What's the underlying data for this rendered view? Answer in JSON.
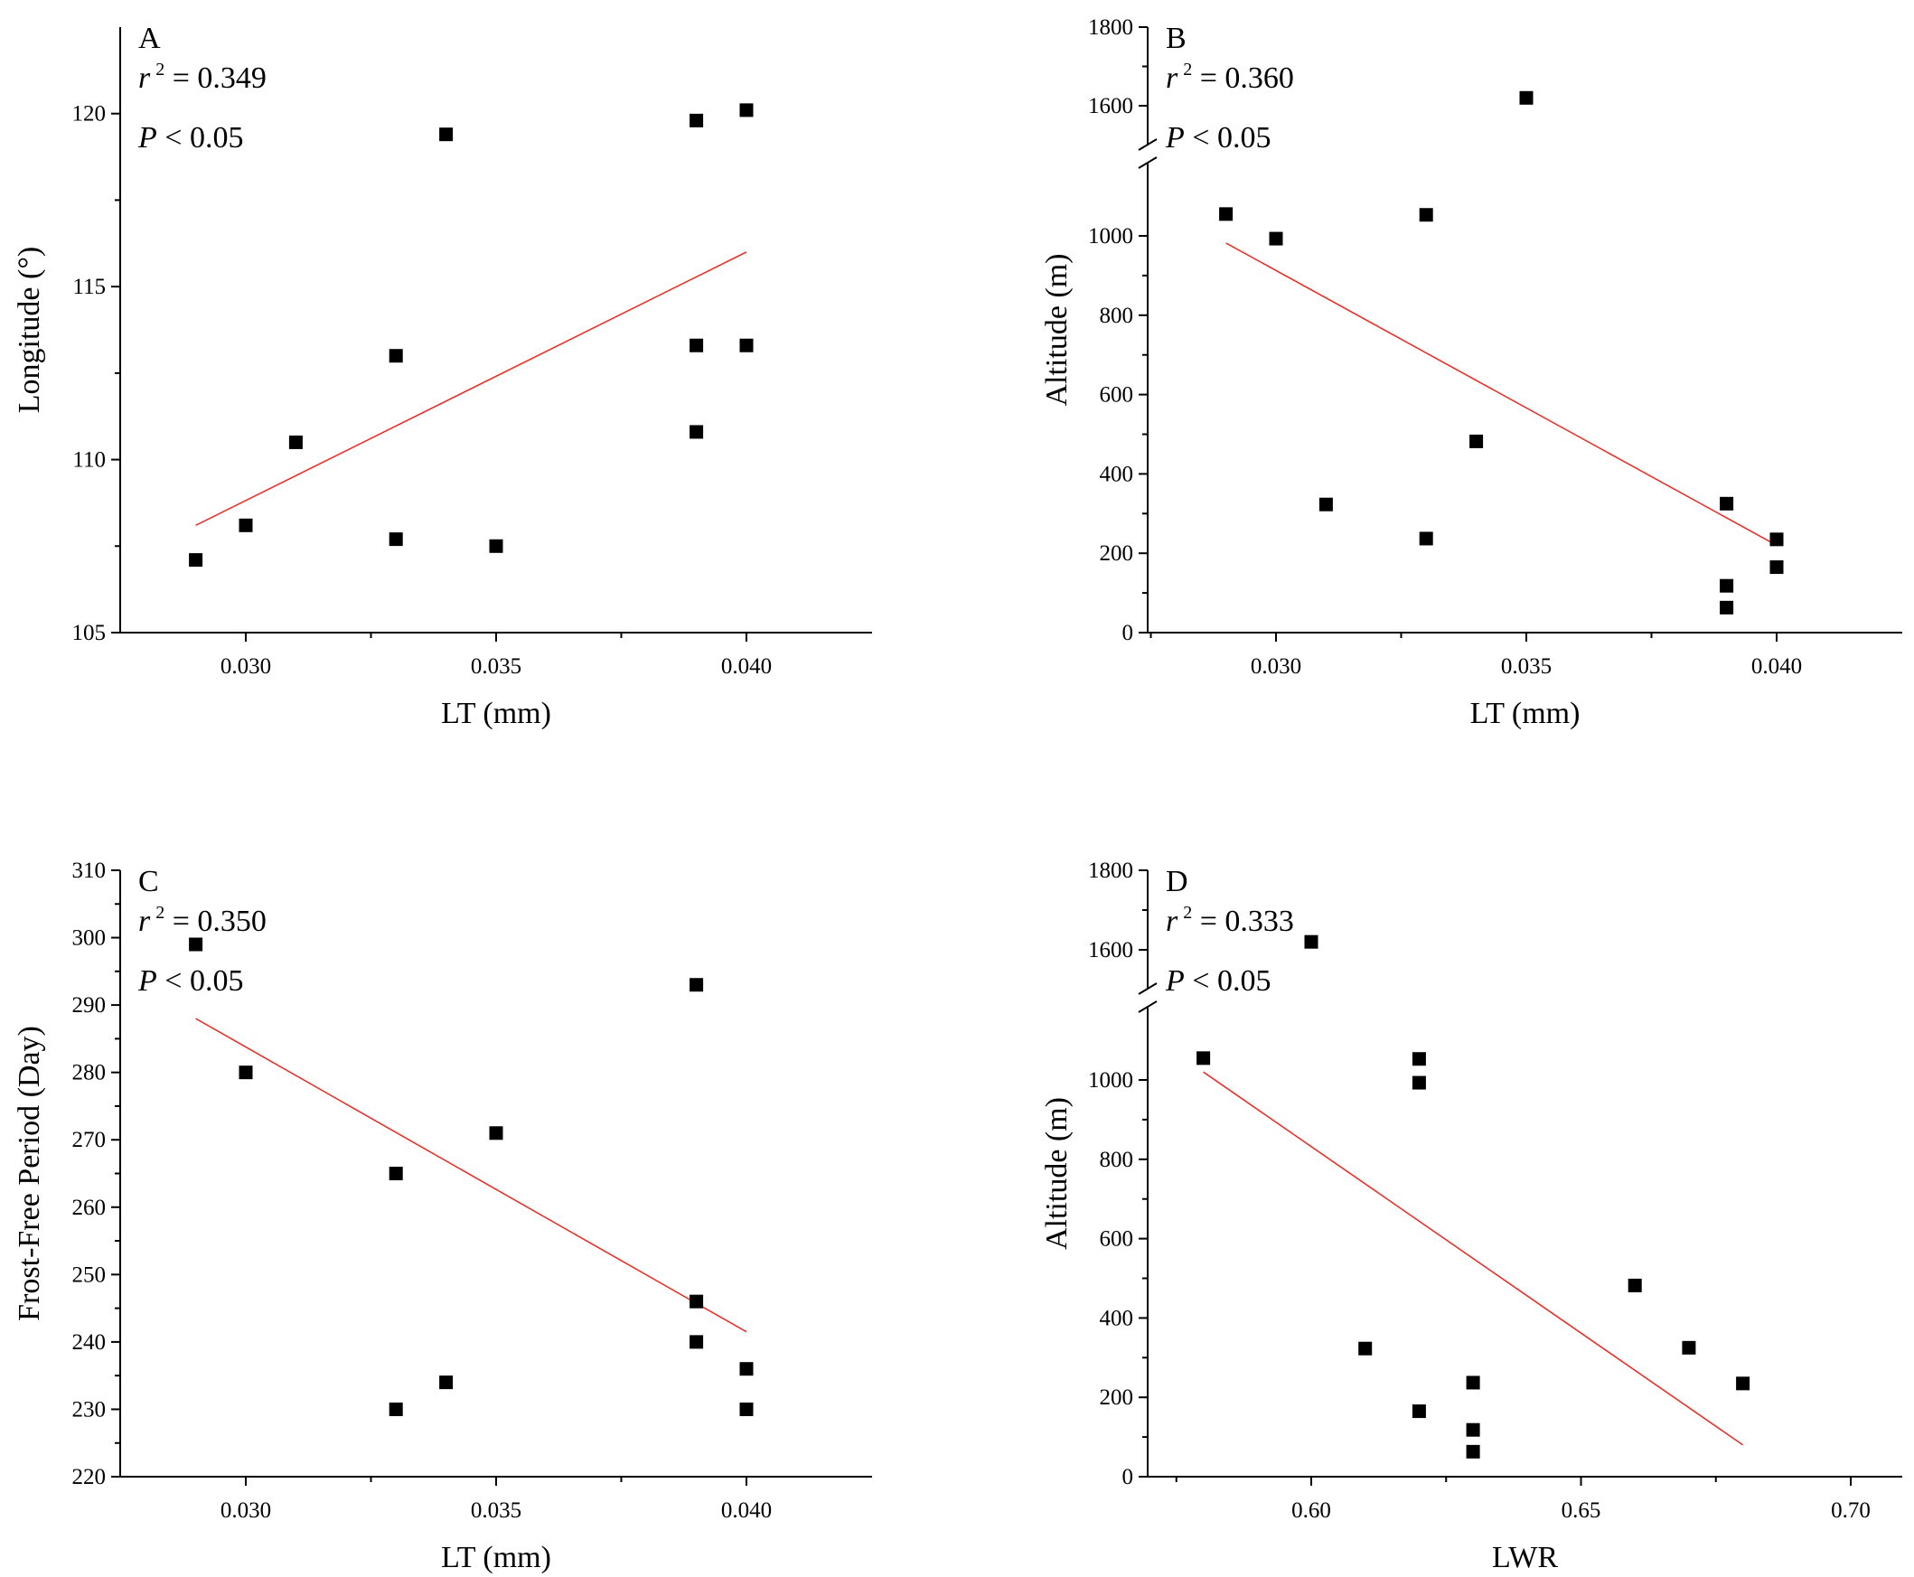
{
  "figure": {
    "background": "#ffffff",
    "point_color": "#000000",
    "fit_color": "#e8322a"
  },
  "chart_data": [
    {
      "id": "A",
      "type": "scatter",
      "panel_label": "A",
      "r2_label": "r",
      "r2_sup": "2",
      "r2_value": " = 0.349",
      "p_label": "P",
      "p_value": " < 0.05",
      "xlabel": "LT (mm)",
      "ylabel": "Longitude (°)",
      "xlim": [
        0.0275,
        0.0425
      ],
      "ylim": [
        105,
        122.5
      ],
      "xticks": [
        0.03,
        0.035,
        0.04
      ],
      "xtick_labels": [
        "0.030",
        "0.035",
        "0.040"
      ],
      "yticks": [
        105,
        110,
        115,
        120
      ],
      "ytick_labels": [
        "105",
        "110",
        "115",
        "120"
      ],
      "x": [
        0.029,
        0.03,
        0.031,
        0.033,
        0.033,
        0.034,
        0.035,
        0.039,
        0.039,
        0.039,
        0.04,
        0.04
      ],
      "y": [
        107.1,
        108.1,
        110.5,
        113.0,
        107.7,
        119.4,
        107.5,
        119.8,
        113.3,
        110.8,
        120.1,
        113.3
      ],
      "fit": {
        "x": [
          0.029,
          0.04
        ],
        "y": [
          108.1,
          116.0
        ]
      }
    },
    {
      "id": "B",
      "type": "scatter",
      "panel_label": "B",
      "r2_label": "r",
      "r2_sup": "2",
      "r2_value": " = 0.360",
      "p_label": "P",
      "p_value": " < 0.05",
      "xlabel": "LT (mm)",
      "ylabel": "Altitude (m)",
      "xlim": [
        0.0275,
        0.0425
      ],
      "ylim": [
        0,
        1800
      ],
      "axis_break": {
        "lower_max": 1150,
        "upper_min": 1550
      },
      "xticks": [
        0.03,
        0.035,
        0.04
      ],
      "xtick_labels": [
        "0.030",
        "0.035",
        "0.040"
      ],
      "yticks": [
        0,
        200,
        400,
        600,
        800,
        1000,
        1600,
        1800
      ],
      "ytick_labels": [
        "0",
        "200",
        "400",
        "600",
        "800",
        "1000",
        "1600",
        "1800"
      ],
      "x": [
        0.029,
        0.03,
        0.031,
        0.033,
        0.033,
        0.034,
        0.035,
        0.039,
        0.039,
        0.039,
        0.04,
        0.04
      ],
      "y": [
        1055,
        993,
        323,
        1053,
        237,
        482,
        1620,
        325,
        118,
        63,
        235,
        165
      ],
      "fit": {
        "x": [
          0.029,
          0.04
        ],
        "y": [
          982,
          220
        ]
      }
    },
    {
      "id": "C",
      "type": "scatter",
      "panel_label": "C",
      "r2_label": "r",
      "r2_sup": "2",
      "r2_value": " = 0.350",
      "p_label": "P",
      "p_value": " < 0.05",
      "xlabel": "LT (mm)",
      "ylabel": "Frost-Free Period (Day)",
      "xlim": [
        0.0275,
        0.0425
      ],
      "ylim": [
        220,
        310
      ],
      "xticks": [
        0.03,
        0.035,
        0.04
      ],
      "xtick_labels": [
        "0.030",
        "0.035",
        "0.040"
      ],
      "yticks": [
        220,
        230,
        240,
        250,
        260,
        270,
        280,
        290,
        300,
        310
      ],
      "ytick_labels": [
        "220",
        "230",
        "240",
        "250",
        "260",
        "270",
        "280",
        "290",
        "300",
        "310"
      ],
      "x": [
        0.029,
        0.03,
        0.033,
        0.033,
        0.034,
        0.035,
        0.039,
        0.039,
        0.039,
        0.04,
        0.04
      ],
      "y": [
        299,
        280,
        265,
        230,
        234,
        271,
        293,
        246,
        240,
        236,
        230
      ],
      "fit": {
        "x": [
          0.029,
          0.04
        ],
        "y": [
          288,
          241.5
        ]
      }
    },
    {
      "id": "D",
      "type": "scatter",
      "panel_label": "D",
      "r2_label": "r",
      "r2_sup": "2",
      "r2_value": " = 0.333",
      "p_label": "P",
      "p_value": " < 0.05",
      "xlabel": "LWR",
      "ylabel": "Altitude (m)",
      "xlim": [
        0.57,
        0.71
      ],
      "ylim": [
        0,
        1800
      ],
      "axis_break": {
        "lower_max": 1150,
        "upper_min": 1550
      },
      "xticks": [
        0.6,
        0.65,
        0.7
      ],
      "xtick_labels": [
        "0.60",
        "0.65",
        "0.70"
      ],
      "yticks": [
        0,
        200,
        400,
        600,
        800,
        1000,
        1600,
        1800
      ],
      "ytick_labels": [
        "0",
        "200",
        "400",
        "600",
        "800",
        "1000",
        "1600",
        "1800"
      ],
      "x": [
        0.58,
        0.6,
        0.61,
        0.62,
        0.62,
        0.62,
        0.63,
        0.63,
        0.63,
        0.66,
        0.67,
        0.68
      ],
      "y": [
        1055,
        1620,
        323,
        1053,
        993,
        165,
        237,
        118,
        63,
        482,
        325,
        235
      ],
      "fit": {
        "x": [
          0.58,
          0.68
        ],
        "y": [
          1020,
          80
        ]
      }
    }
  ]
}
